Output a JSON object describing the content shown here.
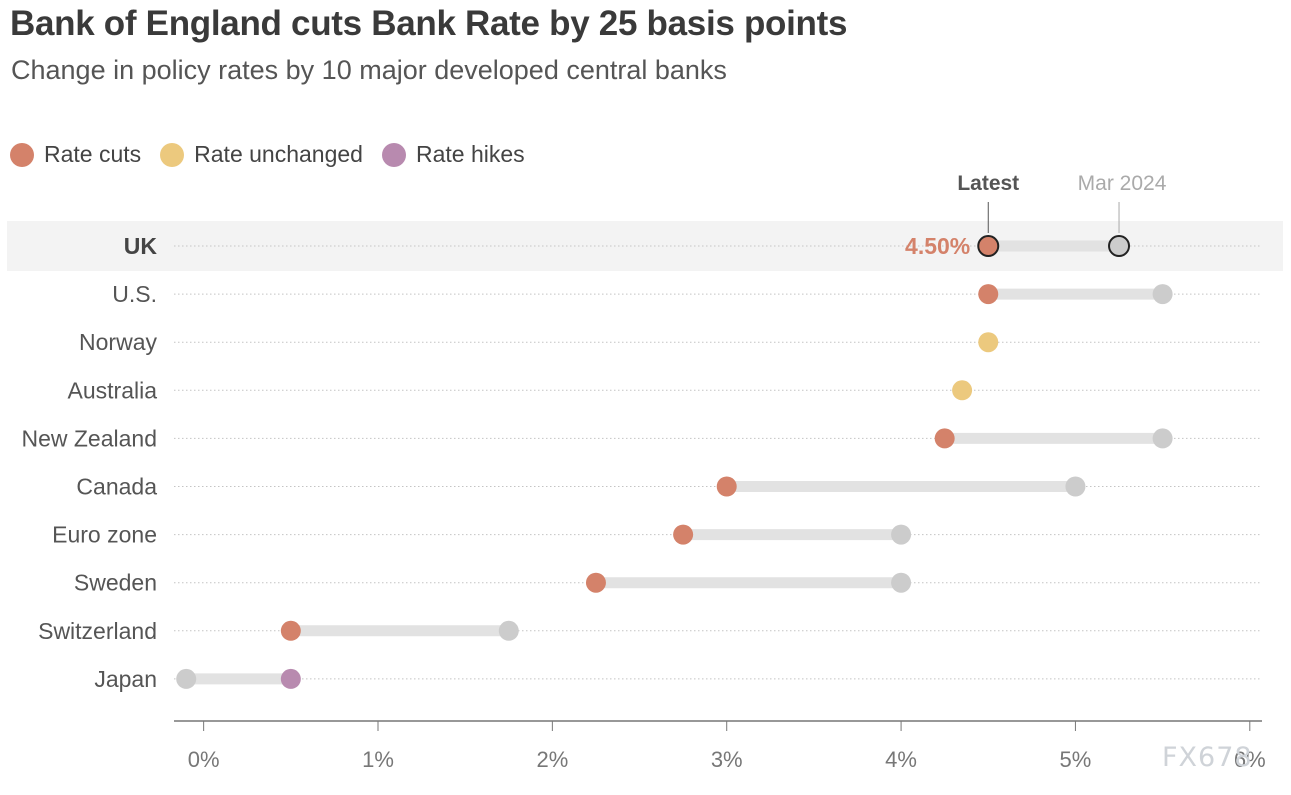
{
  "chart_data": {
    "type": "dot-range",
    "title": "Bank of England cuts Bank Rate by 25 basis points",
    "subtitle": "Change in policy rates by 10 major developed central banks",
    "legend": [
      {
        "label": "Rate cuts",
        "color": "#d4826a"
      },
      {
        "label": "Rate unchanged",
        "color": "#ecc97e"
      },
      {
        "label": "Rate hikes",
        "color": "#b88aaf"
      }
    ],
    "reference_color": "#cccccc",
    "annotations": {
      "latest_label": "Latest",
      "previous_label": "Mar 2024",
      "highlight_value_label": "4.50%"
    },
    "x_ticks": [
      0,
      1,
      2,
      3,
      4,
      5,
      6
    ],
    "x_tick_labels": [
      "0%",
      "1%",
      "2%",
      "3%",
      "4%",
      "5%",
      "6%"
    ],
    "xlim": [
      -0.17,
      6.07
    ],
    "series": [
      {
        "name": "Latest"
      },
      {
        "name": "Mar 2024"
      }
    ],
    "rows": [
      {
        "country": "UK",
        "latest": 4.5,
        "mar2024": 5.25,
        "change": "cut",
        "highlight": true
      },
      {
        "country": "U.S.",
        "latest": 4.5,
        "mar2024": 5.5,
        "change": "cut"
      },
      {
        "country": "Norway",
        "latest": 4.5,
        "mar2024": 4.5,
        "change": "unchanged"
      },
      {
        "country": "Australia",
        "latest": 4.35,
        "mar2024": 4.35,
        "change": "unchanged"
      },
      {
        "country": "New Zealand",
        "latest": 4.25,
        "mar2024": 5.5,
        "change": "cut"
      },
      {
        "country": "Canada",
        "latest": 3.0,
        "mar2024": 5.0,
        "change": "cut"
      },
      {
        "country": "Euro zone",
        "latest": 2.75,
        "mar2024": 4.0,
        "change": "cut"
      },
      {
        "country": "Sweden",
        "latest": 2.25,
        "mar2024": 4.0,
        "change": "cut"
      },
      {
        "country": "Switzerland",
        "latest": 0.5,
        "mar2024": 1.75,
        "change": "cut"
      },
      {
        "country": "Japan",
        "latest": 0.5,
        "mar2024": -0.1,
        "change": "hike"
      }
    ]
  },
  "watermark": "FX678"
}
